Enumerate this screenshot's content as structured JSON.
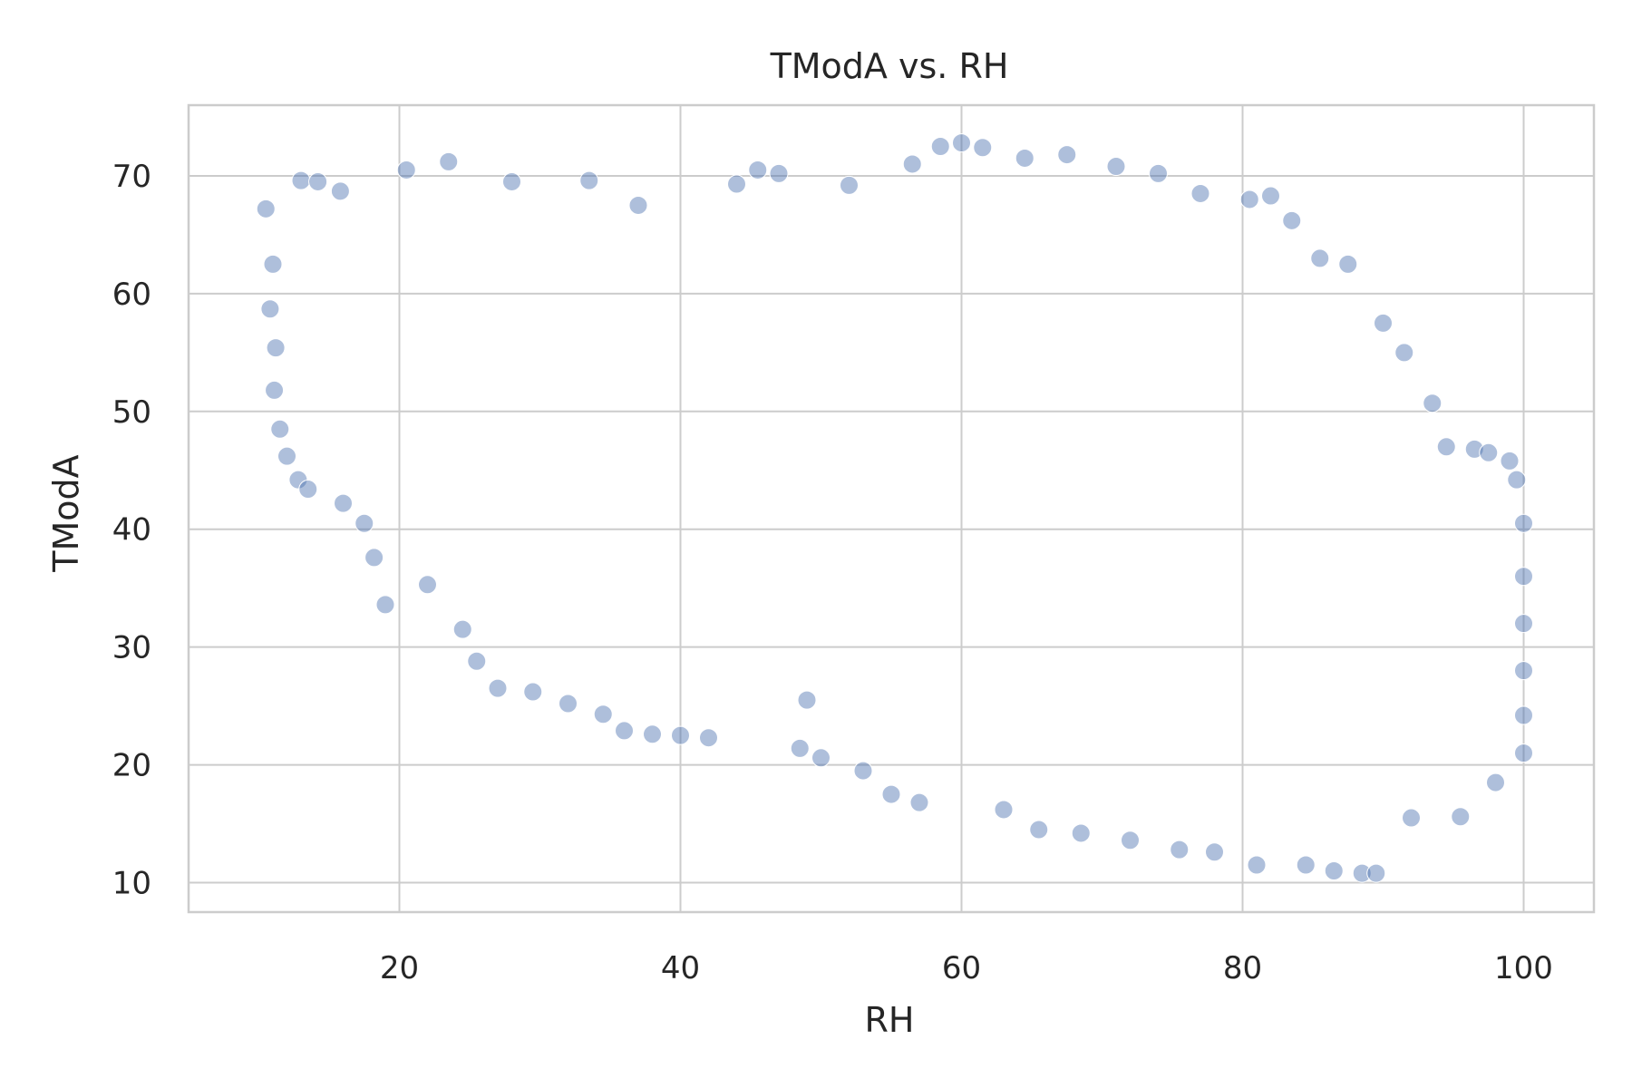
{
  "chart_data": {
    "type": "scatter",
    "title": "TModA vs. RH",
    "xlabel": "RH",
    "ylabel": "TModA",
    "xlim": [
      5,
      105
    ],
    "ylim": [
      7.5,
      76
    ],
    "x_ticks": [
      20,
      40,
      60,
      80,
      100
    ],
    "y_ticks": [
      10,
      20,
      30,
      40,
      50,
      60,
      70
    ],
    "grid": true,
    "legend": "none",
    "marker_color": "#4c72b0",
    "marker_alpha": 0.45,
    "points": [
      {
        "x": 10.5,
        "y": 67.2
      },
      {
        "x": 11,
        "y": 62.5
      },
      {
        "x": 10.8,
        "y": 58.7
      },
      {
        "x": 11.2,
        "y": 55.4
      },
      {
        "x": 11.1,
        "y": 51.8
      },
      {
        "x": 11.5,
        "y": 48.5
      },
      {
        "x": 12,
        "y": 46.2
      },
      {
        "x": 12.8,
        "y": 44.2
      },
      {
        "x": 13.5,
        "y": 43.4
      },
      {
        "x": 13,
        "y": 69.6
      },
      {
        "x": 14.2,
        "y": 69.5
      },
      {
        "x": 15.8,
        "y": 68.7
      },
      {
        "x": 16,
        "y": 42.2
      },
      {
        "x": 17.5,
        "y": 40.5
      },
      {
        "x": 18.2,
        "y": 37.6
      },
      {
        "x": 19,
        "y": 33.6
      },
      {
        "x": 20.5,
        "y": 70.5
      },
      {
        "x": 22,
        "y": 35.3
      },
      {
        "x": 23.5,
        "y": 71.2
      },
      {
        "x": 24.5,
        "y": 31.5
      },
      {
        "x": 25.5,
        "y": 28.8
      },
      {
        "x": 27,
        "y": 26.5
      },
      {
        "x": 28,
        "y": 69.5
      },
      {
        "x": 29.5,
        "y": 26.2
      },
      {
        "x": 32,
        "y": 25.2
      },
      {
        "x": 33.5,
        "y": 69.6
      },
      {
        "x": 34.5,
        "y": 24.3
      },
      {
        "x": 36,
        "y": 22.9
      },
      {
        "x": 37,
        "y": 67.5
      },
      {
        "x": 38,
        "y": 22.6
      },
      {
        "x": 40,
        "y": 22.5
      },
      {
        "x": 42,
        "y": 22.3
      },
      {
        "x": 44,
        "y": 69.3
      },
      {
        "x": 45.5,
        "y": 70.5
      },
      {
        "x": 47,
        "y": 70.2
      },
      {
        "x": 48.5,
        "y": 21.4
      },
      {
        "x": 49,
        "y": 25.5
      },
      {
        "x": 50,
        "y": 20.6
      },
      {
        "x": 52,
        "y": 69.2
      },
      {
        "x": 53,
        "y": 19.5
      },
      {
        "x": 55,
        "y": 17.5
      },
      {
        "x": 56.5,
        "y": 71
      },
      {
        "x": 57,
        "y": 16.8
      },
      {
        "x": 58.5,
        "y": 72.5
      },
      {
        "x": 60,
        "y": 72.8
      },
      {
        "x": 61.5,
        "y": 72.4
      },
      {
        "x": 63,
        "y": 16.2
      },
      {
        "x": 64.5,
        "y": 71.5
      },
      {
        "x": 65.5,
        "y": 14.5
      },
      {
        "x": 67.5,
        "y": 71.8
      },
      {
        "x": 68.5,
        "y": 14.2
      },
      {
        "x": 71,
        "y": 70.8
      },
      {
        "x": 72,
        "y": 13.6
      },
      {
        "x": 74,
        "y": 70.2
      },
      {
        "x": 75.5,
        "y": 12.8
      },
      {
        "x": 77,
        "y": 68.5
      },
      {
        "x": 78,
        "y": 12.6
      },
      {
        "x": 80.5,
        "y": 68
      },
      {
        "x": 81,
        "y": 11.5
      },
      {
        "x": 82,
        "y": 68.3
      },
      {
        "x": 83.5,
        "y": 66.2
      },
      {
        "x": 84.5,
        "y": 11.5
      },
      {
        "x": 85.5,
        "y": 63
      },
      {
        "x": 86.5,
        "y": 11
      },
      {
        "x": 87.5,
        "y": 62.5
      },
      {
        "x": 88.5,
        "y": 10.8
      },
      {
        "x": 89.5,
        "y": 10.8
      },
      {
        "x": 90,
        "y": 57.5
      },
      {
        "x": 91.5,
        "y": 55
      },
      {
        "x": 92,
        "y": 15.5
      },
      {
        "x": 93.5,
        "y": 50.7
      },
      {
        "x": 94.5,
        "y": 47
      },
      {
        "x": 95.5,
        "y": 15.6
      },
      {
        "x": 96.5,
        "y": 46.8
      },
      {
        "x": 97.5,
        "y": 46.5
      },
      {
        "x": 98,
        "y": 18.5
      },
      {
        "x": 99,
        "y": 45.8
      },
      {
        "x": 99.5,
        "y": 44.2
      },
      {
        "x": 100,
        "y": 40.5
      },
      {
        "x": 100,
        "y": 36
      },
      {
        "x": 100,
        "y": 32
      },
      {
        "x": 100,
        "y": 28
      },
      {
        "x": 100,
        "y": 24.2
      },
      {
        "x": 100,
        "y": 21
      }
    ]
  }
}
